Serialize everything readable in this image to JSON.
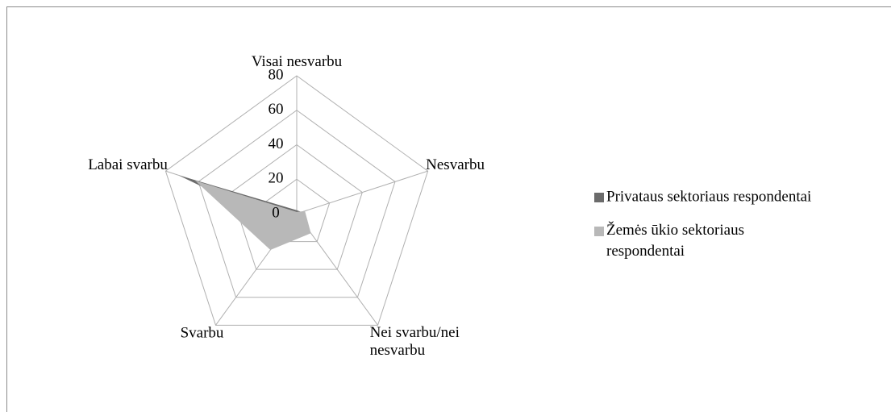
{
  "chart_data": {
    "type": "radar",
    "categories": [
      "Visai nesvarbu",
      "Nesvarbu",
      "Nei svarbu/nei nesvarbu",
      "Svarbu",
      "Labai svarbu"
    ],
    "series": [
      {
        "name": "Privataus sektoriaus respondentai",
        "color": "#6b6b6b",
        "values": [
          2,
          3,
          5,
          10,
          72
        ]
      },
      {
        "name": "Žemės ūkio sektoriaus respondentai",
        "color": "#b8b8b8",
        "values": [
          1,
          5,
          14,
          26,
          62
        ]
      }
    ],
    "ylim": [
      0,
      80
    ],
    "yticks": [
      0,
      20,
      40,
      60,
      80
    ],
    "grid": true
  }
}
